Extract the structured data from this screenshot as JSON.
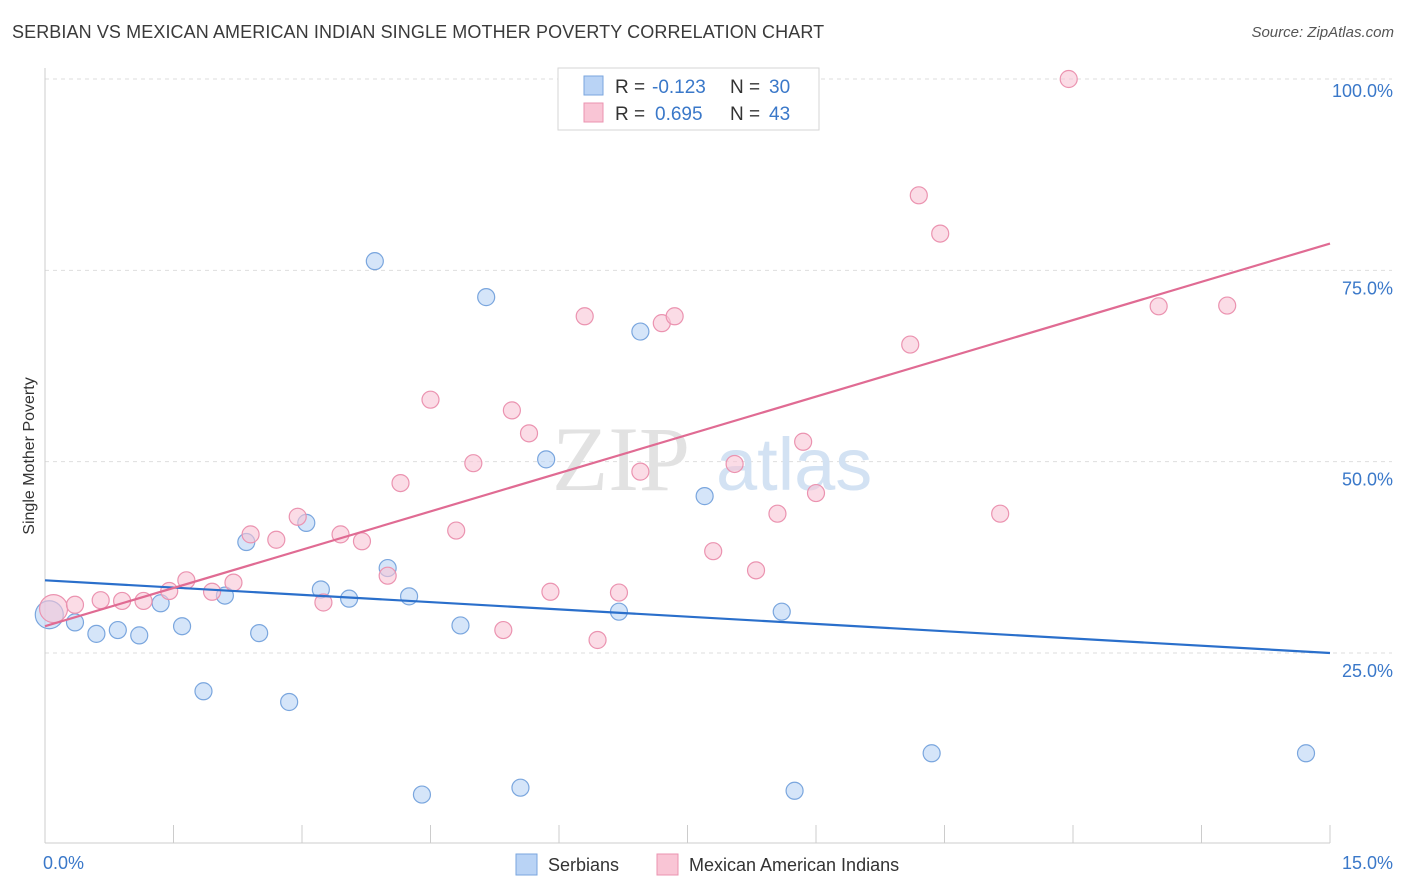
{
  "title": "SERBIAN VS MEXICAN AMERICAN INDIAN SINGLE MOTHER POVERTY CORRELATION CHART",
  "source": "Source: ZipAtlas.com",
  "watermark": {
    "zip": "ZIP",
    "atlas": "atlas"
  },
  "colors": {
    "serbians_fill": "#b9d3f5",
    "serbians_stroke": "#7aa6de",
    "serbians_line": "#2a6fcb",
    "mexican_fill": "#f9c5d5",
    "mexican_stroke": "#eb93b0",
    "mexican_line": "#e06b93",
    "tick_color": "#3a78c9"
  },
  "legend": {
    "r_label": "R =",
    "n_label": "N =",
    "rows": [
      {
        "series": "serbians",
        "r": "-0.123",
        "n": "30"
      },
      {
        "series": "mexican",
        "r": "0.695",
        "n": "43"
      }
    ]
  },
  "chart_data": {
    "type": "scatter",
    "title": "SERBIAN VS MEXICAN AMERICAN INDIAN SINGLE MOTHER POVERTY CORRELATION CHART",
    "xlabel": "",
    "ylabel": "Single Mother Poverty",
    "xlim": [
      0,
      15
    ],
    "ylim": [
      0,
      100
    ],
    "x_ticks_labels": [
      "0.0%",
      "15.0%"
    ],
    "y_ticks": [
      25,
      50,
      75,
      100
    ],
    "y_ticks_labels": [
      "25.0%",
      "50.0%",
      "75.0%",
      "100.0%"
    ],
    "grid": "horizontal dashed",
    "legend_placement": "top-center",
    "series": [
      {
        "name": "Serbians",
        "key": "serbians",
        "trend": {
          "x": [
            0,
            15
          ],
          "y": [
            34.5,
            25.0
          ]
        },
        "points": [
          {
            "x": 0.05,
            "y": 30.0,
            "size": "large"
          },
          {
            "x": 0.35,
            "y": 29.0
          },
          {
            "x": 0.6,
            "y": 27.5
          },
          {
            "x": 0.85,
            "y": 28.0
          },
          {
            "x": 1.1,
            "y": 27.3
          },
          {
            "x": 1.35,
            "y": 31.5
          },
          {
            "x": 1.6,
            "y": 28.5
          },
          {
            "x": 1.85,
            "y": 20.0
          },
          {
            "x": 2.1,
            "y": 32.5
          },
          {
            "x": 2.35,
            "y": 39.5
          },
          {
            "x": 2.5,
            "y": 27.6
          },
          {
            "x": 2.85,
            "y": 18.6
          },
          {
            "x": 3.05,
            "y": 42.0
          },
          {
            "x": 3.22,
            "y": 33.3
          },
          {
            "x": 3.55,
            "y": 32.1
          },
          {
            "x": 3.85,
            "y": 76.2
          },
          {
            "x": 4.0,
            "y": 36.1
          },
          {
            "x": 4.25,
            "y": 32.4
          },
          {
            "x": 4.4,
            "y": 6.5
          },
          {
            "x": 4.85,
            "y": 28.6
          },
          {
            "x": 5.15,
            "y": 71.5
          },
          {
            "x": 5.55,
            "y": 7.4
          },
          {
            "x": 5.85,
            "y": 50.3
          },
          {
            "x": 6.7,
            "y": 30.4
          },
          {
            "x": 6.95,
            "y": 67.0
          },
          {
            "x": 7.7,
            "y": 45.5
          },
          {
            "x": 8.6,
            "y": 30.4
          },
          {
            "x": 8.75,
            "y": 7.0
          },
          {
            "x": 10.35,
            "y": 11.9
          },
          {
            "x": 14.72,
            "y": 11.9
          }
        ]
      },
      {
        "name": "Mexican American Indians",
        "key": "mexican",
        "trend": {
          "x": [
            0,
            15
          ],
          "y": [
            28.5,
            78.5
          ]
        },
        "points": [
          {
            "x": 0.1,
            "y": 30.8,
            "size": "large"
          },
          {
            "x": 0.35,
            "y": 31.3
          },
          {
            "x": 0.65,
            "y": 31.9
          },
          {
            "x": 0.9,
            "y": 31.8
          },
          {
            "x": 1.15,
            "y": 31.8
          },
          {
            "x": 1.45,
            "y": 33.1
          },
          {
            "x": 1.65,
            "y": 34.5
          },
          {
            "x": 1.95,
            "y": 33.0
          },
          {
            "x": 2.2,
            "y": 34.2
          },
          {
            "x": 2.4,
            "y": 40.5
          },
          {
            "x": 2.7,
            "y": 39.8
          },
          {
            "x": 2.95,
            "y": 42.8
          },
          {
            "x": 3.25,
            "y": 31.6
          },
          {
            "x": 3.45,
            "y": 40.5
          },
          {
            "x": 3.7,
            "y": 39.6
          },
          {
            "x": 4.0,
            "y": 35.1
          },
          {
            "x": 4.15,
            "y": 47.2
          },
          {
            "x": 4.5,
            "y": 58.1
          },
          {
            "x": 4.8,
            "y": 41.0
          },
          {
            "x": 5.0,
            "y": 49.8
          },
          {
            "x": 5.35,
            "y": 28.0
          },
          {
            "x": 5.45,
            "y": 56.7
          },
          {
            "x": 5.65,
            "y": 53.7
          },
          {
            "x": 5.9,
            "y": 33.0
          },
          {
            "x": 6.3,
            "y": 69.0
          },
          {
            "x": 6.45,
            "y": 26.7
          },
          {
            "x": 6.7,
            "y": 32.9
          },
          {
            "x": 6.95,
            "y": 48.7
          },
          {
            "x": 7.2,
            "y": 68.1
          },
          {
            "x": 7.35,
            "y": 69.0
          },
          {
            "x": 7.8,
            "y": 38.3
          },
          {
            "x": 8.05,
            "y": 49.7
          },
          {
            "x": 8.3,
            "y": 35.8
          },
          {
            "x": 8.55,
            "y": 43.2
          },
          {
            "x": 8.85,
            "y": 52.6
          },
          {
            "x": 9.0,
            "y": 45.9
          },
          {
            "x": 10.1,
            "y": 65.3
          },
          {
            "x": 10.2,
            "y": 84.8
          },
          {
            "x": 10.45,
            "y": 79.8
          },
          {
            "x": 11.15,
            "y": 43.2
          },
          {
            "x": 11.95,
            "y": 100.0
          },
          {
            "x": 13.0,
            "y": 70.3
          },
          {
            "x": 13.8,
            "y": 70.4
          }
        ]
      }
    ]
  }
}
